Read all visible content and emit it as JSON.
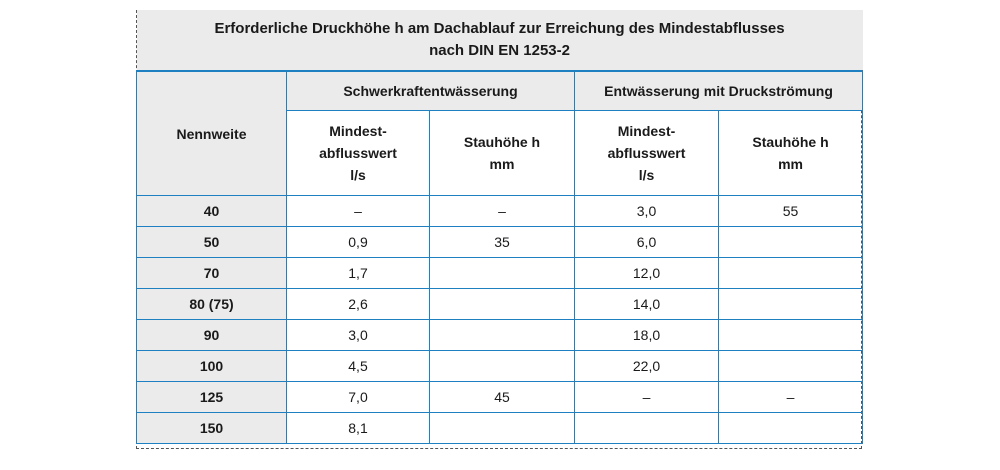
{
  "title_line1": "Erforderliche Druckhöhe h am Dachablauf zur Erreichung des Mindestabflusses",
  "title_line2": "nach DIN EN 1253-2",
  "header": {
    "nennweite": "Nennweite",
    "group1": "Schwerkraftentwässerung",
    "group2": "Entwässerung mit Druckströmung",
    "col_min1": "Mindest-",
    "col_min2": "abflusswert",
    "col_min3": "l/s",
    "col_stau1": "Stauhöhe h",
    "col_stau2": "mm"
  },
  "rows": [
    {
      "nennweite": "40",
      "s_min": "–",
      "s_stau": "–",
      "d_min": "3,0",
      "d_stau": "55"
    },
    {
      "nennweite": "50",
      "s_min": "0,9",
      "s_stau": "35",
      "d_min": "6,0",
      "d_stau": ""
    },
    {
      "nennweite": "70",
      "s_min": "1,7",
      "s_stau": "",
      "d_min": "12,0",
      "d_stau": ""
    },
    {
      "nennweite": "80 (75)",
      "s_min": "2,6",
      "s_stau": "",
      "d_min": "14,0",
      "d_stau": ""
    },
    {
      "nennweite": "90",
      "s_min": "3,0",
      "s_stau": "",
      "d_min": "18,0",
      "d_stau": ""
    },
    {
      "nennweite": "100",
      "s_min": "4,5",
      "s_stau": "",
      "d_min": "22,0",
      "d_stau": ""
    },
    {
      "nennweite": "125",
      "s_min": "7,0",
      "s_stau": "45",
      "d_min": "–",
      "d_stau": "–"
    },
    {
      "nennweite": "150",
      "s_min": "8,1",
      "s_stau": "",
      "d_min": "",
      "d_stau": ""
    }
  ],
  "colors": {
    "border": "#1e7fc1",
    "header_bg": "#ebebeb"
  }
}
